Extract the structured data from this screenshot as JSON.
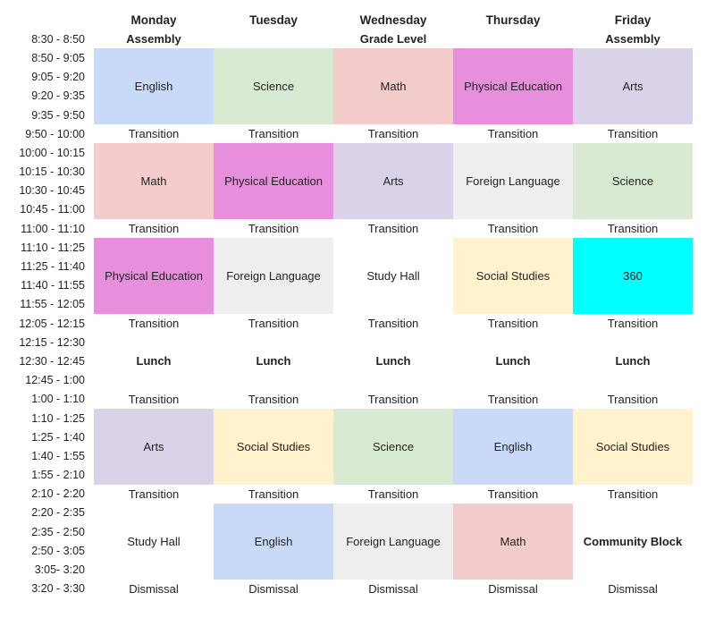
{
  "days": [
    "Monday",
    "Tuesday",
    "Wednesday",
    "Thursday",
    "Friday"
  ],
  "times": [
    "8:30 - 8:50",
    "8:50 - 9:05",
    "9:05 - 9:20",
    "9:20 - 9:35",
    "9:35 - 9:50",
    "9:50 - 10:00",
    "10:00 - 10:15",
    "10:15 - 10:30",
    "10:30 - 10:45",
    "10:45 - 11:00",
    "11:00 - 11:10",
    "11:10 - 11:25",
    "11:25 - 11:40",
    "11:40 - 11:55",
    "11:55 - 12:05",
    "12:05 - 12:15",
    "12:15 - 12:30",
    "12:30 - 12:45",
    "12:45 - 1:00",
    "1:00 - 1:10",
    "1:10 - 1:25",
    "1:25 - 1:40",
    "1:40 - 1:55",
    "1:55 - 2:10",
    "2:10 - 2:20",
    "2:20 - 2:35",
    "2:35 - 2:50",
    "2:50 - 3:05",
    "3:05- 3:20",
    "3:20 - 3:30"
  ],
  "colors": {
    "blue": "#c9daf8",
    "green": "#d9ead3",
    "pink": "#f4cccc",
    "magenta": "#e78fdc",
    "lavender": "#d9d2e9",
    "grey": "#efefef",
    "yellow": "#fff2cc",
    "cyan": "#00ffff"
  },
  "schedule": [
    {
      "start": 1,
      "span": 1,
      "cells": [
        {
          "label": "Assembly",
          "color": null,
          "bold": true
        },
        {
          "label": "",
          "color": null
        },
        {
          "label": "Grade Level",
          "color": null,
          "bold": true
        },
        {
          "label": "",
          "color": null
        },
        {
          "label": "Assembly",
          "color": null,
          "bold": true
        }
      ]
    },
    {
      "start": 2,
      "span": 4,
      "cells": [
        {
          "label": "English",
          "color": "blue"
        },
        {
          "label": "Science",
          "color": "green"
        },
        {
          "label": "Math",
          "color": "pink"
        },
        {
          "label": "Physical Education",
          "color": "magenta"
        },
        {
          "label": "Arts",
          "color": "lavender"
        }
      ]
    },
    {
      "start": 6,
      "span": 1,
      "cells": [
        {
          "label": "Transition"
        },
        {
          "label": "Transition"
        },
        {
          "label": "Transition"
        },
        {
          "label": "Transition"
        },
        {
          "label": "Transition"
        }
      ]
    },
    {
      "start": 7,
      "span": 4,
      "cells": [
        {
          "label": "Math",
          "color": "pink"
        },
        {
          "label": "Physical Education",
          "color": "magenta"
        },
        {
          "label": "Arts",
          "color": "lavender"
        },
        {
          "label": "Foreign Language",
          "color": "grey"
        },
        {
          "label": "Science",
          "color": "green"
        }
      ]
    },
    {
      "start": 11,
      "span": 1,
      "cells": [
        {
          "label": "Transition"
        },
        {
          "label": "Transition"
        },
        {
          "label": "Transition"
        },
        {
          "label": "Transition"
        },
        {
          "label": "Transition"
        }
      ]
    },
    {
      "start": 12,
      "span": 4,
      "cells": [
        {
          "label": "Physical Education",
          "color": "magenta"
        },
        {
          "label": "Foreign Language",
          "color": "grey"
        },
        {
          "label": "Study Hall",
          "color": null
        },
        {
          "label": "Social Studies",
          "color": "yellow"
        },
        {
          "label": "360",
          "color": "cyan"
        }
      ]
    },
    {
      "start": 16,
      "span": 1,
      "cells": [
        {
          "label": "Transition"
        },
        {
          "label": "Transition"
        },
        {
          "label": "Transition"
        },
        {
          "label": "Transition"
        },
        {
          "label": "Transition"
        }
      ]
    },
    {
      "start": 17,
      "span": 3,
      "cells": [
        {
          "label": "Lunch",
          "bold": true
        },
        {
          "label": "Lunch",
          "bold": true
        },
        {
          "label": "Lunch",
          "bold": true
        },
        {
          "label": "Lunch",
          "bold": true
        },
        {
          "label": "Lunch",
          "bold": true
        }
      ]
    },
    {
      "start": 20,
      "span": 1,
      "cells": [
        {
          "label": "Transition"
        },
        {
          "label": "Transition"
        },
        {
          "label": "Transition"
        },
        {
          "label": "Transition"
        },
        {
          "label": "Transition"
        }
      ]
    },
    {
      "start": 21,
      "span": 4,
      "cells": [
        {
          "label": "Arts",
          "color": "lavender"
        },
        {
          "label": "Social Studies",
          "color": "yellow"
        },
        {
          "label": "Science",
          "color": "green"
        },
        {
          "label": "English",
          "color": "blue"
        },
        {
          "label": "Social Studies",
          "color": "yellow"
        }
      ]
    },
    {
      "start": 25,
      "span": 1,
      "cells": [
        {
          "label": "Transition"
        },
        {
          "label": "Transition"
        },
        {
          "label": "Transition"
        },
        {
          "label": "Transition"
        },
        {
          "label": "Transition"
        }
      ]
    },
    {
      "start": 26,
      "span": 4,
      "cells": [
        {
          "label": "Study Hall",
          "color": null
        },
        {
          "label": "English",
          "color": "blue"
        },
        {
          "label": "Foreign Language",
          "color": "grey"
        },
        {
          "label": "Math",
          "color": "pink"
        },
        {
          "label": "Community Block",
          "color": null,
          "bold": true
        }
      ]
    },
    {
      "start": 30,
      "span": 1,
      "cells": [
        {
          "label": "Dismissal"
        },
        {
          "label": "Dismissal"
        },
        {
          "label": "Dismissal"
        },
        {
          "label": "Dismissal"
        },
        {
          "label": "Dismissal"
        }
      ]
    }
  ]
}
